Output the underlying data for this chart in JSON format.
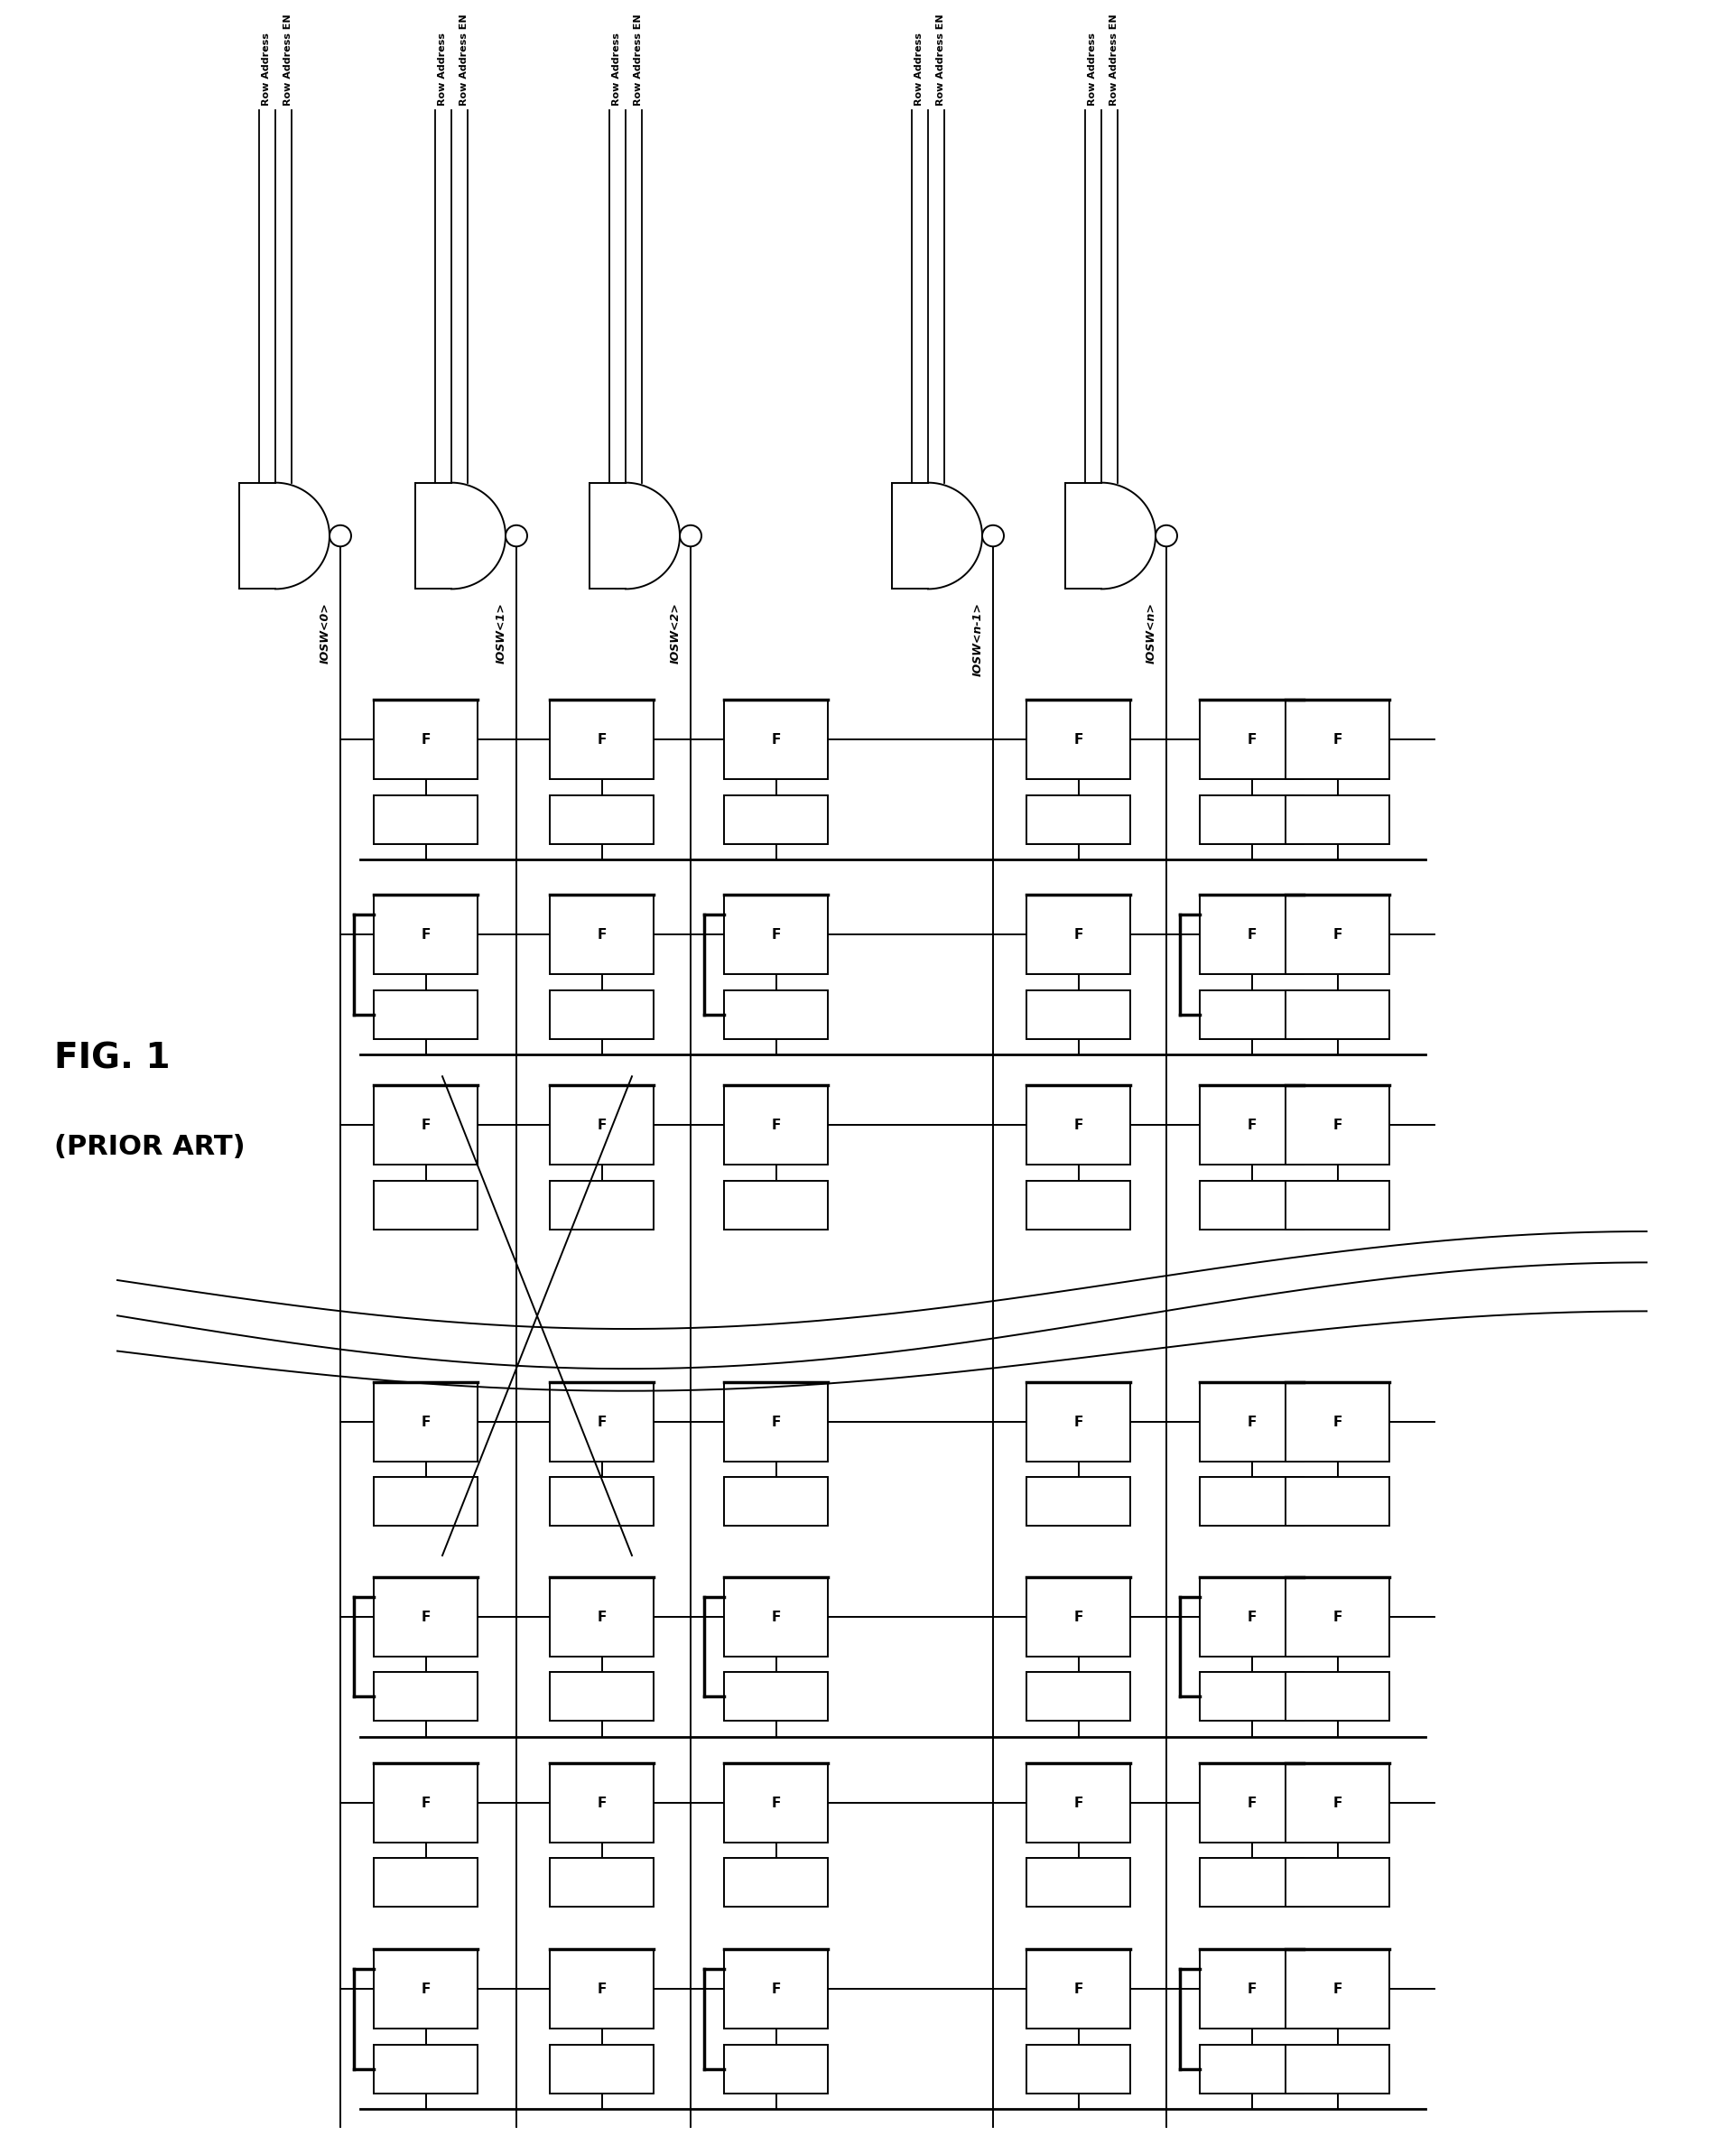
{
  "background_color": "#ffffff",
  "fig_label_line1": "FIG. 1",
  "fig_label_line2": "(PRIOR ART)",
  "iosw_labels": [
    "IOSW<0>",
    "IOSW<1>",
    "IOSW<2>",
    "IOSW<n-1>",
    "IOSW<n>"
  ],
  "row_address_label1": "Row Address",
  "row_address_label2": "Row Address EN",
  "lw_main": 1.4,
  "lw_thick": 2.5,
  "lw_bus": 2.0,
  "gate_font": 8,
  "iosw_font": 9,
  "label_font": 20,
  "fbox_label": "F",
  "fbox_font": 11
}
